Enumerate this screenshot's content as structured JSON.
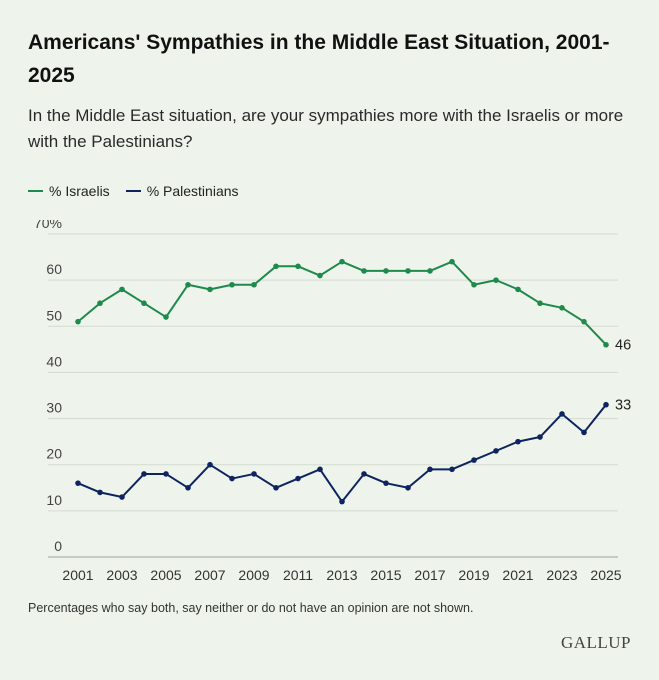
{
  "title": "Americans' Sympathies in the Middle East Situation, 2001-2025",
  "subtitle": "In the Middle East situation, are your sympathies more with the Israelis or more with the Palestinians?",
  "footnote": "Percentages who say both, say neither or do not have an opinion are not shown.",
  "brand": "GALLUP",
  "chart_data": {
    "type": "line",
    "title": "Americans' Sympathies in the Middle East Situation, 2001-2025",
    "xlabel": "",
    "ylabel": "",
    "x": [
      2001,
      2002,
      2003,
      2004,
      2005,
      2006,
      2007,
      2008,
      2009,
      2010,
      2011,
      2012,
      2013,
      2014,
      2015,
      2016,
      2017,
      2018,
      2019,
      2020,
      2021,
      2022,
      2023,
      2024,
      2025
    ],
    "x_tick_labels": [
      "2001",
      "2003",
      "2005",
      "2007",
      "2009",
      "2011",
      "2013",
      "2015",
      "2017",
      "2019",
      "2021",
      "2023",
      "2025"
    ],
    "y_tick_labels": [
      "0",
      "10",
      "20",
      "30",
      "40",
      "50",
      "60",
      "70%"
    ],
    "ylim": [
      0,
      70
    ],
    "grid": true,
    "legend_position": "top-left",
    "series": [
      {
        "name": "% Israelis",
        "color": "#1e8a4c",
        "values": [
          51,
          55,
          58,
          55,
          52,
          59,
          58,
          59,
          59,
          63,
          63,
          61,
          64,
          62,
          62,
          62,
          62,
          64,
          59,
          60,
          58,
          55,
          54,
          51,
          46
        ],
        "end_label": "46"
      },
      {
        "name": "% Palestinians",
        "color": "#0d2461",
        "values": [
          16,
          14,
          13,
          18,
          18,
          15,
          20,
          17,
          18,
          15,
          17,
          19,
          12,
          18,
          16,
          15,
          19,
          19,
          21,
          23,
          25,
          26,
          31,
          27,
          33
        ],
        "end_label": "33"
      }
    ]
  }
}
